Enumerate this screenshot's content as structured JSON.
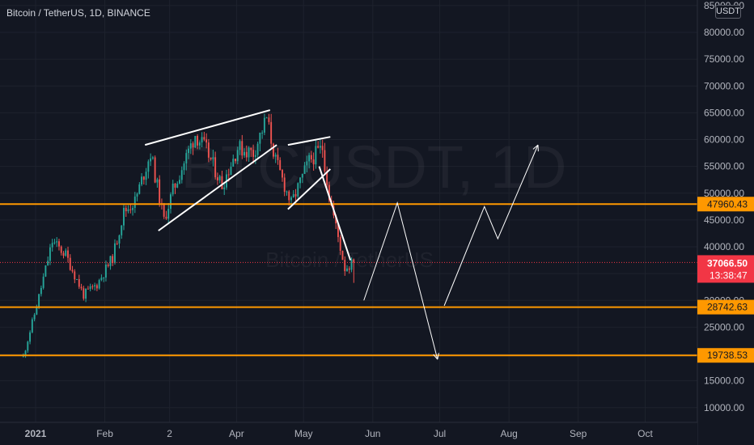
{
  "header": {
    "title": "Bitcoin / TetherUS, 1D, BINANCE",
    "currency_button": "USDT"
  },
  "watermark": {
    "ticker": "BTCUSDT, 1D",
    "name": "Bitcoin / TetherUS"
  },
  "colors": {
    "background": "#131722",
    "up": "#26a69a",
    "down": "#ef5350",
    "level": "#ff9800",
    "price_tag": "#f23645",
    "axis_text": "#b2b5be"
  },
  "chart_data": {
    "type": "candlestick",
    "title": "Bitcoin / TetherUS, 1D, BINANCE",
    "xlabel": "",
    "ylabel": "",
    "ylim": [
      5000,
      85000
    ],
    "y_ticks": [
      "85000.00",
      "80000.00",
      "75000.00",
      "70000.00",
      "65000.00",
      "60000.00",
      "55000.00",
      "50000.00",
      "45000.00",
      "40000.00",
      "35000.00",
      "30000.00",
      "25000.00",
      "20000.00",
      "15000.00",
      "10000.00"
    ],
    "x_ticks": [
      "2021",
      "Feb",
      "2",
      "Apr",
      "May",
      "Jun",
      "Jul",
      "Aug",
      "Sep",
      "Oct"
    ],
    "price_path": [
      [
        "2020-12-26",
        19500
      ],
      [
        "2021-01-01",
        29000
      ],
      [
        "2021-01-08",
        41000
      ],
      [
        "2021-01-14",
        38500
      ],
      [
        "2021-01-22",
        31000
      ],
      [
        "2021-01-28",
        33000
      ],
      [
        "2021-02-04",
        38000
      ],
      [
        "2021-02-09",
        46500
      ],
      [
        "2021-02-14",
        48500
      ],
      [
        "2021-02-21",
        57500
      ],
      [
        "2021-02-27",
        45000
      ],
      [
        "2021-03-03",
        50500
      ],
      [
        "2021-03-13",
        61000
      ],
      [
        "2021-03-18",
        58000
      ],
      [
        "2021-03-25",
        51500
      ],
      [
        "2021-04-01",
        58500
      ],
      [
        "2021-04-08",
        57500
      ],
      [
        "2021-04-14",
        64000
      ],
      [
        "2021-04-18",
        56000
      ],
      [
        "2021-04-25",
        48000
      ],
      [
        "2021-05-03",
        56000
      ],
      [
        "2021-05-09",
        58500
      ],
      [
        "2021-05-12",
        49500
      ],
      [
        "2021-05-19",
        36000
      ],
      [
        "2021-05-23",
        37066.5
      ]
    ],
    "last_price": {
      "value": 37066.5,
      "label": "37066.50",
      "countdown": "13:38:47"
    },
    "levels": [
      {
        "price": 47960.43,
        "label": "47960.43"
      },
      {
        "price": 28742.63,
        "label": "28742.63"
      },
      {
        "price": 19738.53,
        "label": "19738.53"
      }
    ],
    "drawn_channels": [
      [
        [
          "2021-02-19",
          59000
        ],
        [
          "2021-04-16",
          65500
        ]
      ],
      [
        [
          "2021-02-25",
          43000
        ],
        [
          "2021-04-19",
          59000
        ]
      ],
      [
        [
          "2021-04-24",
          59000
        ],
        [
          "2021-05-13",
          60500
        ]
      ],
      [
        [
          "2021-04-24",
          47000
        ],
        [
          "2021-05-13",
          54500
        ]
      ],
      [
        [
          "2021-05-08",
          55000
        ],
        [
          "2021-05-22",
          37500
        ]
      ]
    ],
    "projection_arrows": [
      [
        [
          "2021-05-28",
          30000
        ],
        [
          "2021-06-12",
          48200
        ],
        [
          "2021-06-30",
          19000
        ]
      ],
      [
        [
          "2021-07-03",
          29000
        ],
        [
          "2021-07-21",
          47500
        ],
        [
          "2021-07-27",
          41500
        ],
        [
          "2021-08-14",
          59000
        ]
      ]
    ]
  }
}
